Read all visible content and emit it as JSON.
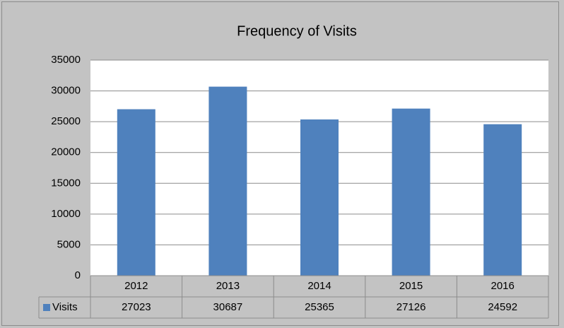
{
  "chart_data": {
    "type": "bar",
    "title": "Frequency of Visits",
    "categories": [
      "2012",
      "2013",
      "2014",
      "2015",
      "2016"
    ],
    "series": [
      {
        "name": "Visits",
        "color": "#4f81bd",
        "values": [
          27023,
          30687,
          25365,
          27126,
          24592
        ]
      }
    ],
    "ylim": [
      0,
      35000
    ],
    "yticks": [
      0,
      5000,
      10000,
      15000,
      20000,
      25000,
      30000,
      35000
    ],
    "grid": true
  }
}
